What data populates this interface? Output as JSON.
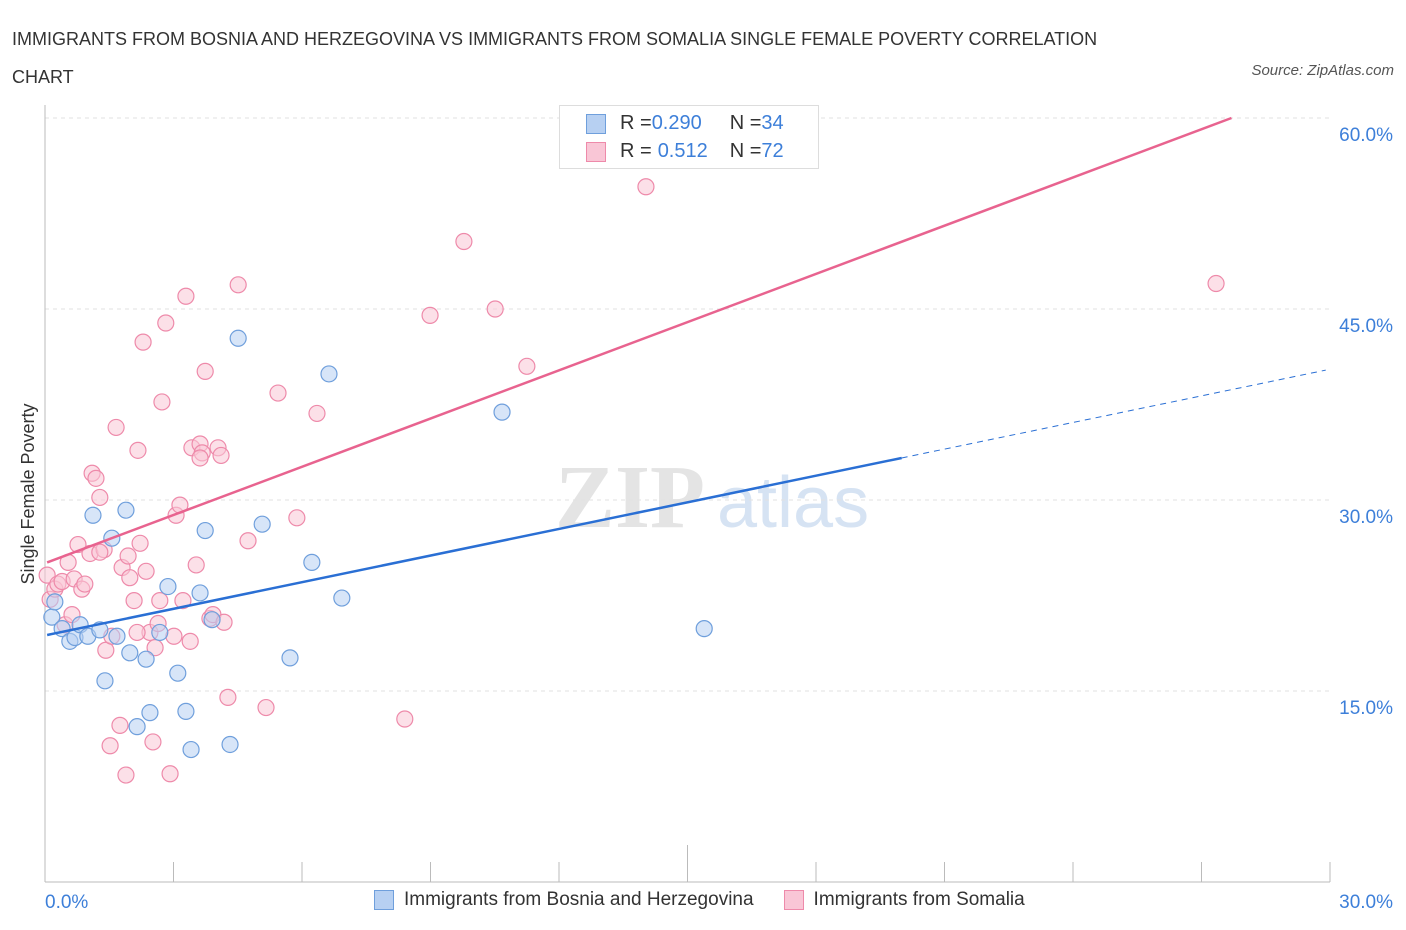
{
  "chart_data": {
    "type": "scatter",
    "title": "IMMIGRANTS FROM BOSNIA AND HERZEGOVINA VS IMMIGRANTS FROM SOMALIA SINGLE FEMALE POVERTY CORRELATION CHART",
    "source": "Source: ZipAtlas.com",
    "ylabel": "Single Female Poverty",
    "xlim": [
      0,
      30
    ],
    "ylim": [
      0,
      60
    ],
    "x_tick_labels": [
      "0.0%",
      "30.0%"
    ],
    "y_ticks": [
      15,
      30,
      45,
      60
    ],
    "y_tick_labels": [
      "15.0%",
      "30.0%",
      "45.0%",
      "60.0%"
    ],
    "watermark": "ZIPatlas",
    "colors": {
      "blue_fill": "#b7d0f2",
      "blue_stroke": "#6f9fdc",
      "blue_line": "#2a6fd4",
      "pink_fill": "#f9c6d6",
      "pink_stroke": "#ee8aaa",
      "pink_line": "#e8638f",
      "text_blue": "#3d7fd9"
    },
    "legend": [
      {
        "r_label": "R = ",
        "r": "0.290",
        "n_label": "N = ",
        "n": "34"
      },
      {
        "r_label": "R = ",
        "r": "0.512",
        "n_label": "N = ",
        "n": "72"
      }
    ],
    "series": [
      {
        "name": "Immigrants from Bosnia and Herzegovina",
        "trend": {
          "solid": [
            [
              0.05,
              19.4
            ],
            [
              20.0,
              33.3
            ]
          ],
          "dashed": [
            [
              20.0,
              33.3
            ],
            [
              29.9,
              40.2
            ]
          ]
        },
        "points": [
          [
            0.16,
            20.8
          ],
          [
            0.23,
            22.0
          ],
          [
            0.4,
            19.9
          ],
          [
            0.58,
            18.9
          ],
          [
            0.7,
            19.2
          ],
          [
            0.82,
            20.2
          ],
          [
            1.0,
            19.3
          ],
          [
            1.12,
            28.8
          ],
          [
            1.28,
            19.8
          ],
          [
            1.4,
            15.8
          ],
          [
            1.56,
            27.0
          ],
          [
            1.68,
            19.3
          ],
          [
            1.89,
            29.2
          ],
          [
            1.98,
            18.0
          ],
          [
            2.36,
            17.5
          ],
          [
            2.45,
            13.3
          ],
          [
            2.87,
            23.2
          ],
          [
            3.1,
            16.4
          ],
          [
            3.29,
            13.4
          ],
          [
            3.41,
            10.4
          ],
          [
            3.62,
            22.7
          ],
          [
            3.74,
            27.6
          ],
          [
            3.9,
            20.6
          ],
          [
            4.32,
            10.8
          ],
          [
            4.51,
            42.7
          ],
          [
            5.07,
            28.1
          ],
          [
            5.72,
            17.6
          ],
          [
            6.23,
            25.1
          ],
          [
            6.63,
            39.9
          ],
          [
            6.93,
            22.3
          ],
          [
            10.67,
            36.9
          ],
          [
            15.39,
            19.9
          ],
          [
            2.15,
            12.2
          ],
          [
            2.68,
            19.6
          ]
        ]
      },
      {
        "name": "Immigrants from Somalia",
        "trend": {
          "solid": [
            [
              0.05,
              25.1
            ],
            [
              27.7,
              60.0
            ]
          ]
        },
        "points": [
          [
            0.05,
            24.1
          ],
          [
            0.12,
            22.2
          ],
          [
            0.23,
            23.0
          ],
          [
            0.3,
            23.4
          ],
          [
            0.4,
            23.6
          ],
          [
            0.47,
            20.2
          ],
          [
            0.54,
            25.1
          ],
          [
            0.63,
            21.0
          ],
          [
            0.68,
            23.8
          ],
          [
            0.77,
            26.5
          ],
          [
            0.86,
            23.0
          ],
          [
            0.93,
            23.4
          ],
          [
            1.05,
            25.8
          ],
          [
            1.1,
            32.1
          ],
          [
            1.19,
            31.7
          ],
          [
            1.28,
            30.2
          ],
          [
            1.38,
            26.1
          ],
          [
            1.42,
            18.2
          ],
          [
            1.52,
            10.7
          ],
          [
            1.56,
            19.3
          ],
          [
            1.66,
            35.7
          ],
          [
            1.75,
            12.3
          ],
          [
            1.8,
            24.7
          ],
          [
            1.89,
            8.4
          ],
          [
            1.94,
            25.6
          ],
          [
            1.98,
            23.9
          ],
          [
            2.08,
            22.1
          ],
          [
            2.17,
            33.9
          ],
          [
            2.22,
            26.6
          ],
          [
            2.29,
            42.4
          ],
          [
            2.36,
            24.4
          ],
          [
            2.45,
            19.6
          ],
          [
            2.52,
            11.0
          ],
          [
            2.57,
            18.4
          ],
          [
            2.64,
            20.3
          ],
          [
            2.73,
            37.7
          ],
          [
            2.82,
            43.9
          ],
          [
            2.92,
            8.5
          ],
          [
            3.01,
            19.3
          ],
          [
            3.06,
            28.8
          ],
          [
            3.15,
            29.6
          ],
          [
            3.22,
            22.1
          ],
          [
            3.29,
            46.0
          ],
          [
            3.39,
            18.9
          ],
          [
            3.43,
            34.1
          ],
          [
            3.53,
            24.9
          ],
          [
            3.62,
            34.4
          ],
          [
            3.67,
            33.7
          ],
          [
            3.74,
            40.1
          ],
          [
            3.85,
            20.7
          ],
          [
            3.92,
            21.0
          ],
          [
            4.04,
            34.1
          ],
          [
            4.11,
            33.5
          ],
          [
            4.18,
            20.4
          ],
          [
            4.27,
            14.5
          ],
          [
            4.51,
            46.9
          ],
          [
            4.74,
            26.8
          ],
          [
            5.16,
            13.7
          ],
          [
            5.44,
            38.4
          ],
          [
            5.88,
            28.6
          ],
          [
            6.35,
            36.8
          ],
          [
            8.4,
            12.8
          ],
          [
            8.99,
            44.5
          ],
          [
            9.78,
            50.3
          ],
          [
            10.51,
            45.0
          ],
          [
            11.25,
            40.5
          ],
          [
            14.03,
            54.6
          ],
          [
            27.34,
            47.0
          ],
          [
            3.62,
            33.3
          ],
          [
            1.28,
            25.9
          ],
          [
            2.15,
            19.6
          ],
          [
            2.68,
            22.1
          ]
        ]
      }
    ]
  }
}
